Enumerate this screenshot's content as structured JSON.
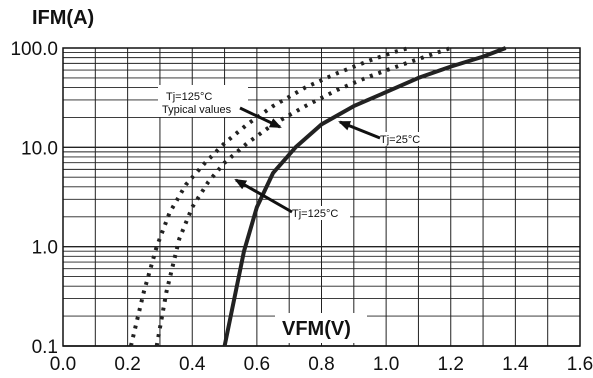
{
  "chart_data": {
    "type": "line",
    "xlabel": "VFM(V)",
    "ylabel": "IFM(A)",
    "xlim": [
      0.0,
      1.6
    ],
    "ylim": [
      0.1,
      100.0
    ],
    "yscale": "log",
    "grid": true,
    "x_ticks": [
      "0.0",
      "0.2",
      "0.4",
      "0.6",
      "0.8",
      "1.0",
      "1.2",
      "1.4",
      "1.6"
    ],
    "y_ticks": [
      "0.1",
      "1.0",
      "10.0",
      "100.0"
    ],
    "series": [
      {
        "name": "Tj=25°C",
        "style": "solid",
        "color": "#222222",
        "x": [
          0.5,
          0.53,
          0.56,
          0.6,
          0.65,
          0.72,
          0.8,
          0.9,
          1.0,
          1.1,
          1.2,
          1.3,
          1.37
        ],
        "y": [
          0.1,
          0.3,
          0.9,
          2.5,
          5.5,
          10.0,
          17.0,
          26.0,
          36.0,
          50.0,
          65.0,
          82.0,
          100.0
        ]
      },
      {
        "name": "Tj=125°C",
        "style": "dotted",
        "color": "#222222",
        "x": [
          0.29,
          0.32,
          0.36,
          0.4,
          0.45,
          0.5,
          0.57,
          0.65,
          0.75,
          0.85,
          0.95,
          1.05,
          1.15,
          1.2
        ],
        "y": [
          0.1,
          0.35,
          1.2,
          2.5,
          4.5,
          7.0,
          11.0,
          17.0,
          26.0,
          38.0,
          52.0,
          68.0,
          88.0,
          100.0
        ]
      },
      {
        "name": "Tj=125°C Typical values",
        "style": "dotted",
        "color": "#222222",
        "x": [
          0.21,
          0.25,
          0.29,
          0.33,
          0.38,
          0.44,
          0.5,
          0.57,
          0.65,
          0.75,
          0.85,
          0.95,
          1.02,
          1.07
        ],
        "y": [
          0.1,
          0.35,
          1.0,
          2.2,
          4.2,
          7.0,
          11.0,
          17.0,
          26.0,
          40.0,
          56.0,
          75.0,
          90.0,
          100.0
        ]
      }
    ],
    "annotations": [
      {
        "name": "Tj=125°C",
        "sub": "Typical values",
        "points_to": "Tj=125°C Typical values"
      },
      {
        "name": "Tj=25°C",
        "sub": "",
        "points_to": "Tj=25°C"
      },
      {
        "name": "Tj=125°C",
        "sub": "",
        "points_to": "Tj=125°C"
      }
    ]
  }
}
